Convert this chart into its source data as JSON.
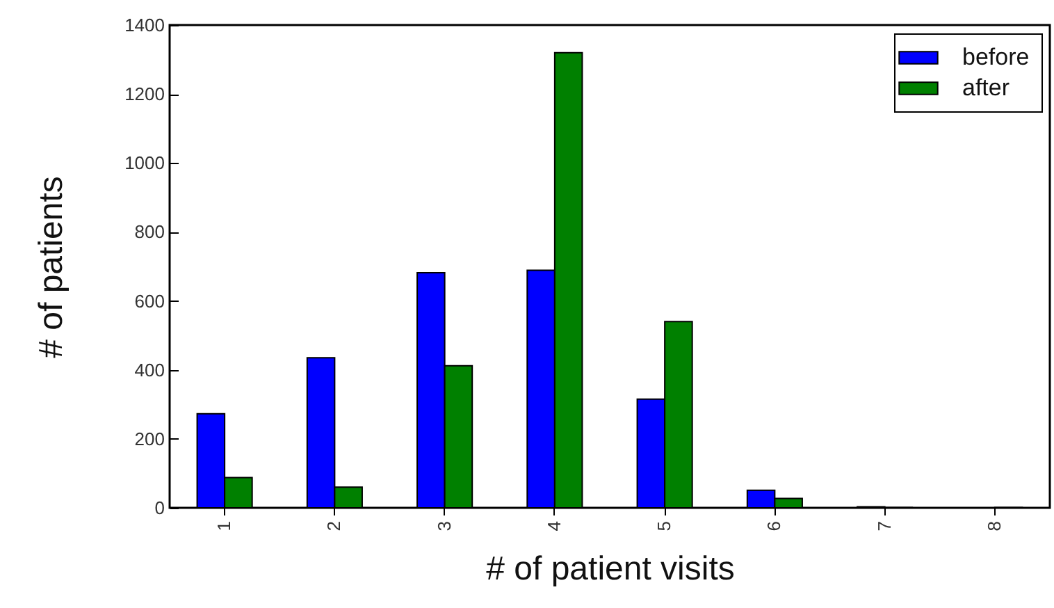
{
  "chart_data": {
    "type": "bar",
    "xlabel": "#   of patient visits",
    "ylabel": "#   of patients",
    "categories": [
      "1",
      "2",
      "3",
      "4",
      "5",
      "6",
      "7",
      "8"
    ],
    "series": [
      {
        "name": "before",
        "color": "#0000ff",
        "values": [
          273,
          435,
          682,
          689,
          315,
          51,
          3,
          0
        ]
      },
      {
        "name": "after",
        "color": "#008000",
        "values": [
          88,
          60,
          412,
          1320,
          540,
          27,
          1,
          1
        ]
      }
    ],
    "ylim": [
      0,
      1400
    ],
    "yticks": [
      0,
      200,
      400,
      600,
      800,
      1000,
      1200,
      1400
    ],
    "grid": false,
    "legend": "top right"
  }
}
